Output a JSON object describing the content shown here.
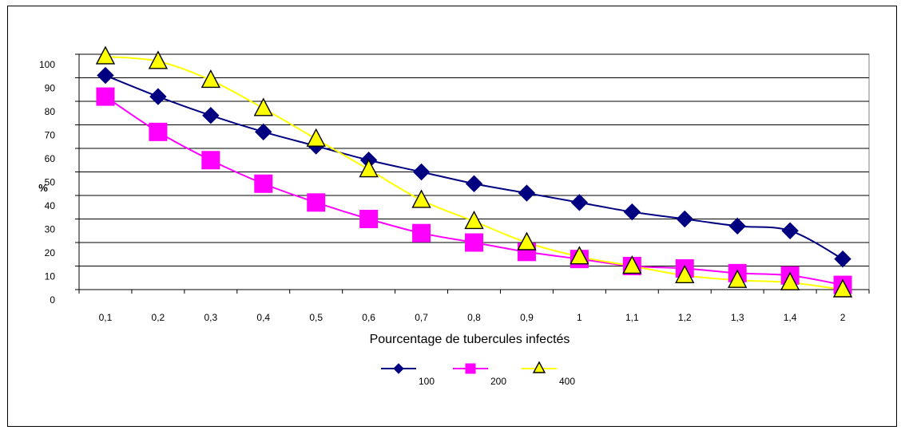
{
  "chart_data": {
    "type": "line",
    "title": "",
    "xlabel": "Pourcentage de tubercules infectés",
    "ylabel": "%",
    "categories": [
      "0,1",
      "0,2",
      "0,3",
      "0,4",
      "0,5",
      "0,6",
      "0,7",
      "0,8",
      "0,9",
      "1",
      "1,1",
      "1,2",
      "1,3",
      "1,4",
      "2"
    ],
    "ylim": [
      0,
      100
    ],
    "yticks": [
      "0",
      "10",
      "20",
      "30",
      "40",
      "50",
      "60",
      "70",
      "80",
      "90",
      "100"
    ],
    "grid": "horizontal",
    "legend_position": "bottom",
    "series": [
      {
        "name": "100",
        "color": "#000080",
        "marker": "diamond",
        "values": [
          91,
          82,
          74,
          67,
          61,
          55,
          50,
          45,
          41,
          37,
          33,
          30,
          27,
          25,
          13
        ]
      },
      {
        "name": "200",
        "color": "#ff00ff",
        "marker": "square",
        "values": [
          82,
          67,
          55,
          45,
          37,
          30,
          24,
          20,
          16,
          13,
          10,
          9,
          7,
          6,
          2
        ]
      },
      {
        "name": "400",
        "color": "#ffff00",
        "marker": "triangle",
        "values": [
          99,
          97,
          89,
          77,
          64,
          51,
          38,
          29,
          20,
          14,
          10,
          6,
          4,
          3,
          0
        ]
      }
    ]
  }
}
